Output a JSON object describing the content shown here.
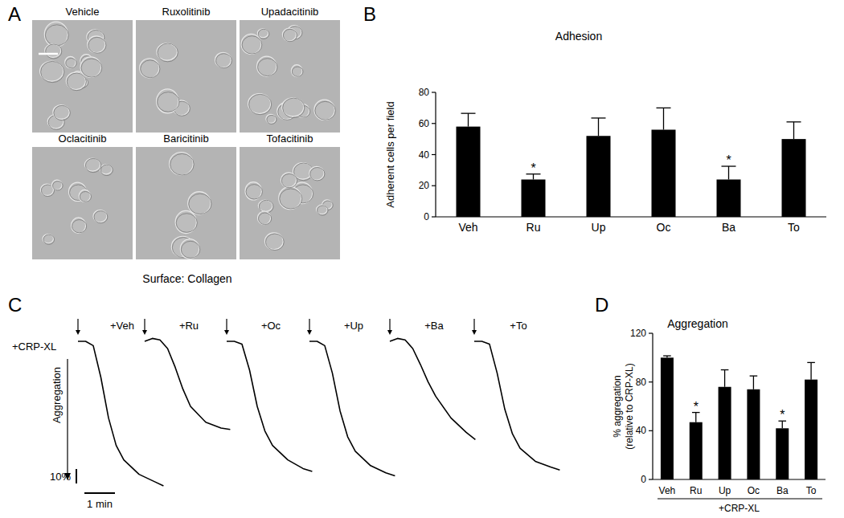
{
  "chart_data": [
    {
      "type": "image_grid",
      "panel": "A",
      "images": [
        "Vehicle",
        "Ruxolitinib",
        "Upadacitinib",
        "Oclacitinib",
        "Baricitinib",
        "Tofacitinib"
      ],
      "caption": "Surface: Collagen"
    },
    {
      "type": "bar",
      "panel": "B",
      "title": "Adhesion",
      "y_label": "Adherent cells per field",
      "categories": [
        "Veh",
        "Ru",
        "Up",
        "Oc",
        "Ba",
        "To"
      ],
      "values": [
        58,
        24,
        52,
        56,
        24,
        50
      ],
      "errors": [
        8.5,
        3.5,
        11.5,
        14,
        8.5,
        11
      ],
      "color": "#000000",
      "ylim": [
        0,
        80
      ],
      "yticks": [
        0,
        20,
        40,
        60,
        80
      ],
      "grid": false,
      "annotations": [
        {
          "category": "Ru",
          "text": "*"
        },
        {
          "category": "Ba",
          "text": "*"
        }
      ]
    },
    {
      "type": "line",
      "panel": "C",
      "y_label": "Aggregation",
      "start_label": "+CRP-XL",
      "x": [
        0,
        0.25,
        0.5,
        0.75,
        1.0,
        1.25,
        1.5,
        2.0,
        2.5,
        2.8
      ],
      "series": [
        {
          "name": "+Veh",
          "values": [
            0,
            0,
            3,
            25,
            53,
            72,
            82,
            92,
            97,
            100
          ]
        },
        {
          "name": "+Ru",
          "values": [
            0,
            -2,
            -1,
            5,
            18,
            33,
            45,
            56,
            60,
            61
          ]
        },
        {
          "name": "+Oc",
          "values": [
            0,
            0,
            2,
            20,
            45,
            62,
            72,
            82,
            88,
            90
          ]
        },
        {
          "name": "+Up",
          "values": [
            0,
            0,
            3,
            22,
            48,
            66,
            76,
            86,
            91,
            93
          ]
        },
        {
          "name": "+Ba",
          "values": [
            0,
            -2,
            -1,
            5,
            16,
            28,
            38,
            53,
            63,
            68
          ]
        },
        {
          "name": "+To",
          "values": [
            0,
            0,
            2,
            22,
            47,
            64,
            74,
            83,
            87,
            89
          ]
        }
      ],
      "color": "#000000",
      "scale_bars": [
        {
          "value": 10,
          "label": "10%"
        },
        {
          "value": 1,
          "label": "1 min"
        }
      ],
      "tick_labels": false
    },
    {
      "type": "bar",
      "panel": "D",
      "title": "Aggregation",
      "y_label": [
        "% aggregation",
        "(relative to CRP-XL)"
      ],
      "x_label": "+CRP-XL",
      "categories": [
        "Veh",
        "Ru",
        "Up",
        "Oc",
        "Ba",
        "To"
      ],
      "values": [
        100,
        47,
        76,
        74,
        42,
        82
      ],
      "errors": [
        1.5,
        8,
        14,
        11,
        6,
        14
      ],
      "color": "#000000",
      "ylim": [
        0,
        120
      ],
      "yticks": [
        0,
        40,
        80,
        120
      ],
      "grid": false,
      "annotations": [
        {
          "category": "Ru",
          "text": "*"
        },
        {
          "category": "Ba",
          "text": "*"
        }
      ]
    }
  ]
}
